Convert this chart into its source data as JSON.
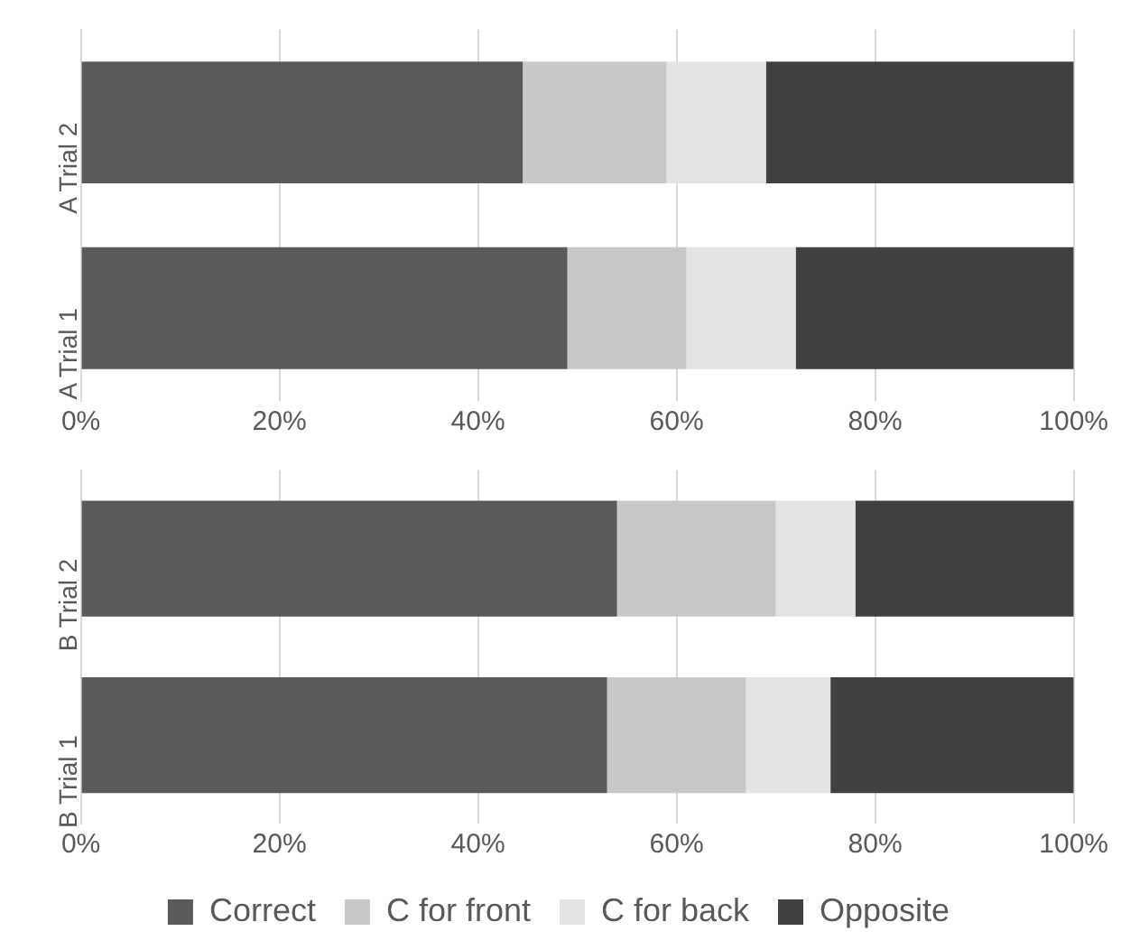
{
  "chart_data": [
    {
      "type": "bar",
      "orientation": "horizontal",
      "stacked": true,
      "categories": [
        "A Trial 2",
        "A Trial 1"
      ],
      "series": [
        {
          "color": "#5a5a5a",
          "values": [
            44.5,
            49
          ]
        },
        {
          "color": "#c8c8c8",
          "values": [
            14.5,
            12
          ]
        },
        {
          "color": "#e4e4e4",
          "values": [
            10,
            11
          ]
        },
        {
          "color": "#404040",
          "values": [
            31,
            28
          ]
        }
      ],
      "xlim": [
        0,
        100
      ],
      "xticks": [
        {
          "value": 0,
          "label": "0%"
        },
        {
          "value": 20,
          "label": "20%"
        },
        {
          "value": 40,
          "label": "40%"
        },
        {
          "value": 60,
          "label": "60%"
        },
        {
          "value": 80,
          "label": "80%"
        },
        {
          "value": 100,
          "label": "100%"
        }
      ],
      "grid": "x",
      "legend": false
    },
    {
      "type": "bar",
      "orientation": "horizontal",
      "stacked": true,
      "categories": [
        "B Trial 2",
        "B Trial 1"
      ],
      "series": [
        {
          "name": "Correct",
          "color": "#5a5a5a",
          "values": [
            54,
            53
          ]
        },
        {
          "name": "C for front",
          "color": "#c8c8c8",
          "values": [
            16,
            14
          ]
        },
        {
          "name": "C for back",
          "color": "#e4e4e4",
          "values": [
            8,
            8.5
          ]
        },
        {
          "name": "Opposite",
          "color": "#404040",
          "values": [
            22,
            24.5
          ]
        }
      ],
      "xlim": [
        0,
        100
      ],
      "xticks": [
        {
          "value": 0,
          "label": "0%"
        },
        {
          "value": 20,
          "label": "20%"
        },
        {
          "value": 40,
          "label": "40%"
        },
        {
          "value": 60,
          "label": "60%"
        },
        {
          "value": 80,
          "label": "80%"
        },
        {
          "value": 100,
          "label": "100%"
        }
      ],
      "grid": "x",
      "legend": "bottom"
    }
  ]
}
